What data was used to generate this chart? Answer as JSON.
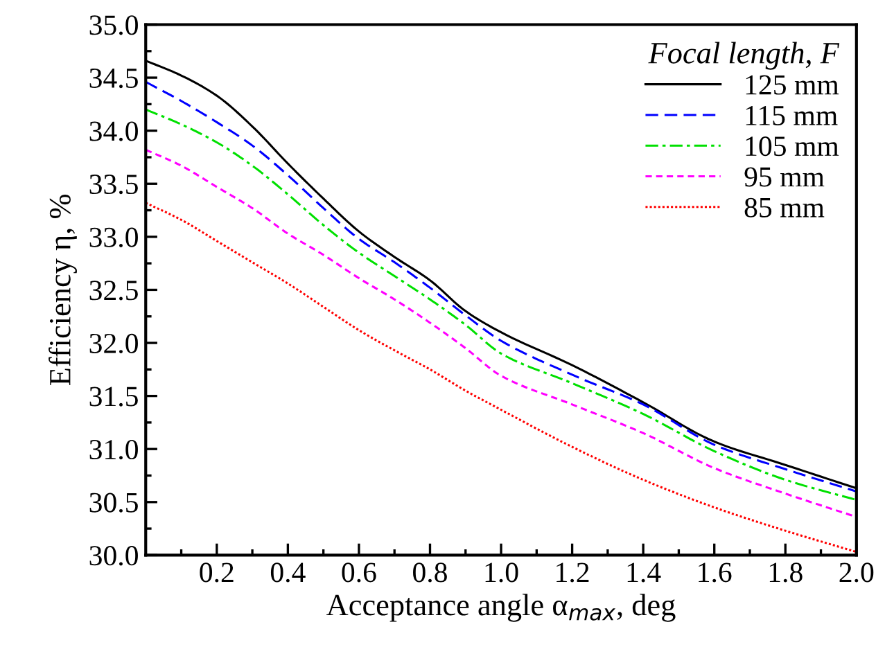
{
  "chart_data": {
    "type": "line",
    "xlabel": "Acceptance angle α$_{max}$, deg",
    "ylabel": "Efficiency η, %",
    "legend_title": "Focal length, F",
    "legend": "top right",
    "grid": false,
    "marker": "none",
    "xlim": [
      0,
      2.0
    ],
    "ylim": [
      30.0,
      35.0
    ],
    "xticks": [
      0.2,
      0.4,
      0.6,
      0.8,
      {
        "value": 1,
        "label": "1.0"
      },
      1.2,
      1.4,
      1.6,
      1.8,
      {
        "value": 2,
        "label": "2.0"
      }
    ],
    "yticks": [
      {
        "value": 30,
        "label": "30.0"
      },
      30.5,
      {
        "value": 31,
        "label": "31.0"
      },
      31.5,
      {
        "value": 32,
        "label": "32.0"
      },
      32.5,
      {
        "value": 33,
        "label": "33.0"
      },
      33.5,
      {
        "value": 34,
        "label": "34.0"
      },
      34.5,
      {
        "value": 35,
        "label": "35.0"
      }
    ],
    "x": [
      0,
      0.1,
      0.2,
      0.3,
      0.4,
      0.5,
      0.6,
      0.7,
      0.8,
      0.9,
      1.0,
      1.2,
      1.4,
      1.6,
      1.8,
      2.0
    ],
    "series": [
      {
        "name": "125 mm",
        "color": "#000000",
        "line_style": "solid",
        "values": [
          34.66,
          34.52,
          34.33,
          34.04,
          33.69,
          33.36,
          33.05,
          32.81,
          32.59,
          32.3,
          32.1,
          31.79,
          31.44,
          31.07,
          30.85,
          30.63
        ]
      },
      {
        "name": "115 mm",
        "color": "#0000ff",
        "line_style": "dashed",
        "values": [
          34.46,
          34.28,
          34.08,
          33.86,
          33.58,
          33.27,
          32.98,
          32.76,
          32.52,
          32.26,
          32.02,
          31.7,
          31.42,
          31.04,
          30.81,
          30.6
        ]
      },
      {
        "name": "105 mm",
        "color": "#00e000",
        "line_style": "dashdot",
        "values": [
          34.2,
          34.06,
          33.89,
          33.67,
          33.4,
          33.11,
          32.85,
          32.63,
          32.41,
          32.17,
          31.9,
          31.62,
          31.33,
          30.98,
          30.71,
          30.52
        ]
      },
      {
        "name": "95 mm",
        "color": "#ff00ff",
        "line_style": "short dashed",
        "values": [
          33.82,
          33.67,
          33.47,
          33.27,
          33.03,
          32.83,
          32.61,
          32.41,
          32.19,
          31.95,
          31.69,
          31.42,
          31.15,
          30.82,
          30.58,
          30.36
        ]
      },
      {
        "name": "85 mm",
        "color": "#ff0000",
        "line_style": "dotted",
        "values": [
          33.32,
          33.16,
          32.96,
          32.76,
          32.56,
          32.34,
          32.12,
          31.93,
          31.75,
          31.55,
          31.37,
          31.02,
          30.71,
          30.45,
          30.23,
          30.03
        ]
      }
    ]
  }
}
